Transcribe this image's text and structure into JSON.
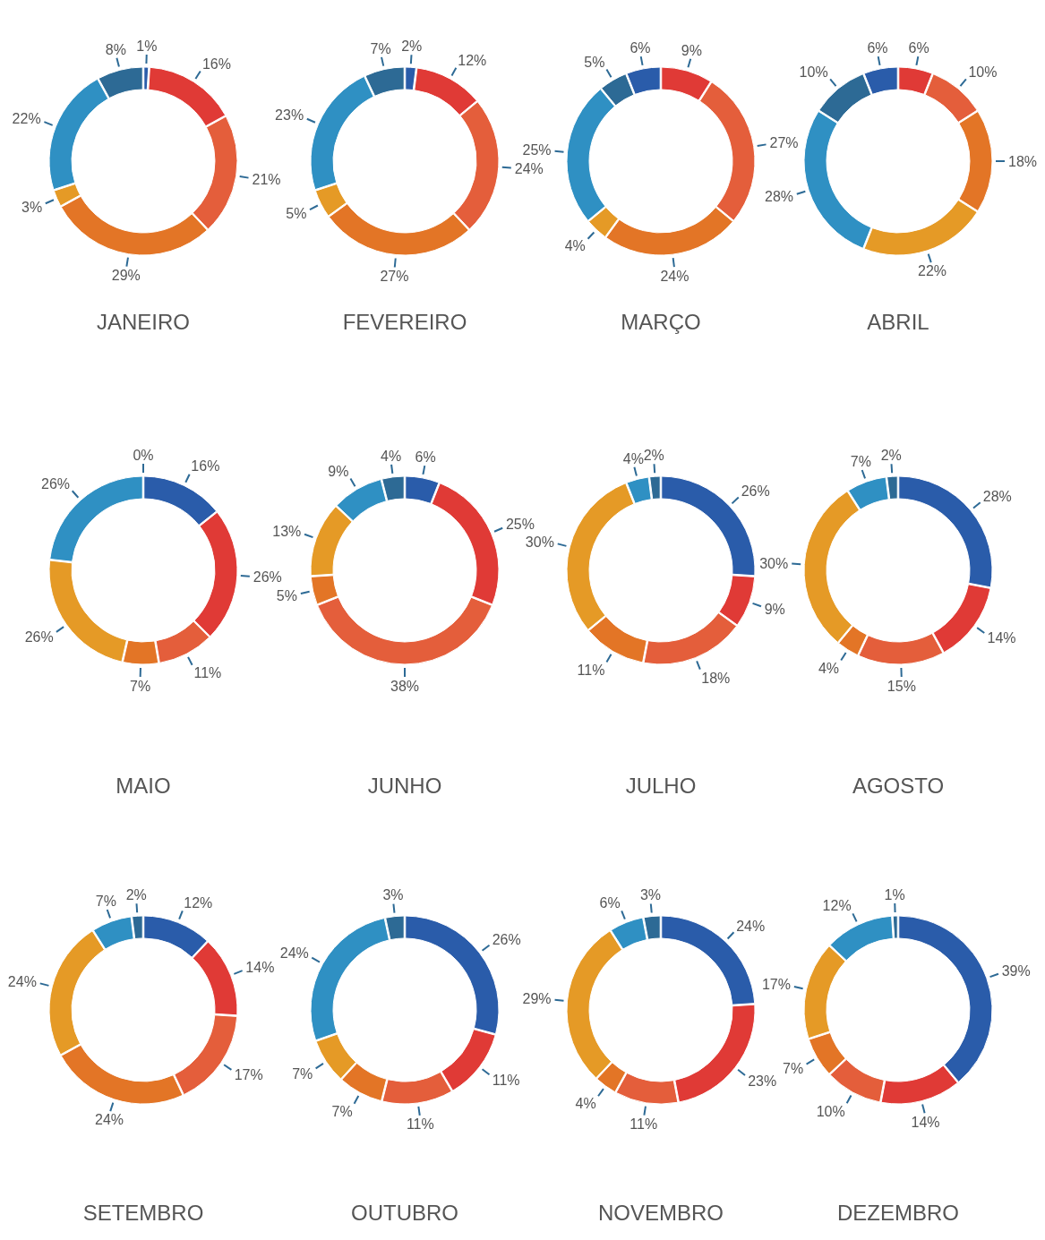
{
  "chart_data": [
    {
      "type": "donut",
      "title": "JANEIRO",
      "categories": [
        null,
        null,
        null,
        null,
        null,
        null,
        null
      ],
      "values": [
        1,
        16,
        21,
        29,
        3,
        22,
        8
      ],
      "value_labels": [
        "1%",
        "16%",
        "21%",
        "29%",
        "3%",
        "22%",
        "8%"
      ],
      "colors": [
        "#2a5caa",
        "#e03a36",
        "#e45e3b",
        "#e37526",
        "#e59a26",
        "#2f90c3",
        "#2d6a95"
      ]
    },
    {
      "type": "donut",
      "title": "FEVEREIRO",
      "categories": [
        null,
        null,
        null,
        null,
        null,
        null,
        null
      ],
      "values": [
        2,
        12,
        24,
        27,
        5,
        23,
        7
      ],
      "value_labels": [
        "2%",
        "12%",
        "24%",
        "27%",
        "5%",
        "23%",
        "7%"
      ],
      "colors": [
        "#2a5caa",
        "#e03a36",
        "#e45e3b",
        "#e37526",
        "#e59a26",
        "#2f90c3",
        "#2d6a95"
      ]
    },
    {
      "type": "donut",
      "title": "MARÇO",
      "categories": [
        null,
        null,
        null,
        null,
        null,
        null,
        null
      ],
      "values": [
        9,
        27,
        24,
        4,
        25,
        5,
        6
      ],
      "value_labels": [
        "9%",
        "27%",
        "24%",
        "4%",
        "25%",
        "5%",
        "6%"
      ],
      "colors": [
        "#e03a36",
        "#e45e3b",
        "#e37526",
        "#e59a26",
        "#2f90c3",
        "#2d6a95",
        "#2a5caa"
      ]
    },
    {
      "type": "donut",
      "title": "ABRIL",
      "categories": [
        null,
        null,
        null,
        null,
        null,
        null,
        null
      ],
      "values": [
        6,
        10,
        18,
        22,
        28,
        10,
        6
      ],
      "value_labels": [
        "6%",
        "10%",
        "18%",
        "22%",
        "28%",
        "10%",
        "6%"
      ],
      "colors": [
        "#e03a36",
        "#e45e3b",
        "#e37526",
        "#e59a26",
        "#2f90c3",
        "#2d6a95",
        "#2a5caa"
      ]
    },
    {
      "type": "donut",
      "title": "MAIO",
      "categories": [
        null,
        null,
        null,
        null,
        null,
        null,
        null
      ],
      "values": [
        16,
        26,
        11,
        7,
        26,
        26,
        0
      ],
      "value_labels": [
        "16%",
        "26%",
        "11%",
        "7%",
        "26%",
        "26%",
        "0%"
      ],
      "colors": [
        "#2a5caa",
        "#e03a36",
        "#e45e3b",
        "#e37526",
        "#e59a26",
        "#2f90c3",
        "#2d6a95"
      ]
    },
    {
      "type": "donut",
      "title": "JUNHO",
      "categories": [
        null,
        null,
        null,
        null,
        null,
        null,
        null
      ],
      "values": [
        6,
        25,
        38,
        5,
        13,
        9,
        4
      ],
      "value_labels": [
        "6%",
        "25%",
        "38%",
        "5%",
        "13%",
        "9%",
        "4%"
      ],
      "colors": [
        "#2a5caa",
        "#e03a36",
        "#e45e3b",
        "#e37526",
        "#e59a26",
        "#2f90c3",
        "#2d6a95"
      ]
    },
    {
      "type": "donut",
      "title": "JULHO",
      "categories": [
        null,
        null,
        null,
        null,
        null,
        null,
        null
      ],
      "values": [
        26,
        9,
        18,
        11,
        30,
        4,
        2
      ],
      "value_labels": [
        "26%",
        "9%",
        "18%",
        "11%",
        "30%",
        "4%",
        "2%"
      ],
      "colors": [
        "#2a5caa",
        "#e03a36",
        "#e45e3b",
        "#e37526",
        "#e59a26",
        "#2f90c3",
        "#2d6a95"
      ]
    },
    {
      "type": "donut",
      "title": "AGOSTO",
      "categories": [
        null,
        null,
        null,
        null,
        null,
        null,
        null
      ],
      "values": [
        28,
        14,
        15,
        4,
        30,
        7,
        2
      ],
      "value_labels": [
        "28%",
        "14%",
        "15%",
        "4%",
        "30%",
        "7%",
        "2%"
      ],
      "colors": [
        "#2a5caa",
        "#e03a36",
        "#e45e3b",
        "#e37526",
        "#e59a26",
        "#2f90c3",
        "#2d6a95"
      ]
    },
    {
      "type": "donut",
      "title": "SETEMBRO",
      "categories": [
        null,
        null,
        null,
        null,
        null,
        null,
        null
      ],
      "values": [
        12,
        14,
        17,
        24,
        24,
        7,
        2
      ],
      "value_labels": [
        "12%",
        "14%",
        "17%",
        "24%",
        "24%",
        "7%",
        "2%"
      ],
      "colors": [
        "#2a5caa",
        "#e03a36",
        "#e45e3b",
        "#e37526",
        "#e59a26",
        "#2f90c3",
        "#2d6a95"
      ]
    },
    {
      "type": "donut",
      "title": "OUTUBRO",
      "categories": [
        null,
        null,
        null,
        null,
        null,
        null,
        null
      ],
      "values": [
        26,
        11,
        11,
        7,
        7,
        24,
        3
      ],
      "value_labels": [
        "26%",
        "11%",
        "11%",
        "7%",
        "7%",
        "24%",
        "3%"
      ],
      "colors": [
        "#2a5caa",
        "#e03a36",
        "#e45e3b",
        "#e37526",
        "#e59a26",
        "#2f90c3",
        "#2d6a95"
      ]
    },
    {
      "type": "donut",
      "title": "NOVEMBRO",
      "categories": [
        null,
        null,
        null,
        null,
        null,
        null,
        null
      ],
      "values": [
        24,
        23,
        11,
        4,
        29,
        6,
        3
      ],
      "value_labels": [
        "24%",
        "23%",
        "11%",
        "4%",
        "29%",
        "6%",
        "3%"
      ],
      "colors": [
        "#2a5caa",
        "#e03a36",
        "#e45e3b",
        "#e37526",
        "#e59a26",
        "#2f90c3",
        "#2d6a95"
      ]
    },
    {
      "type": "donut",
      "title": "DEZEMBRO",
      "categories": [
        null,
        null,
        null,
        null,
        null,
        null,
        null
      ],
      "values": [
        39,
        14,
        10,
        7,
        17,
        12,
        1
      ],
      "value_labels": [
        "39%",
        "14%",
        "10%",
        "7%",
        "17%",
        "12%",
        "1%"
      ],
      "colors": [
        "#2a5caa",
        "#e03a36",
        "#e45e3b",
        "#e37526",
        "#e59a26",
        "#2f90c3",
        "#2d6a95"
      ]
    }
  ]
}
